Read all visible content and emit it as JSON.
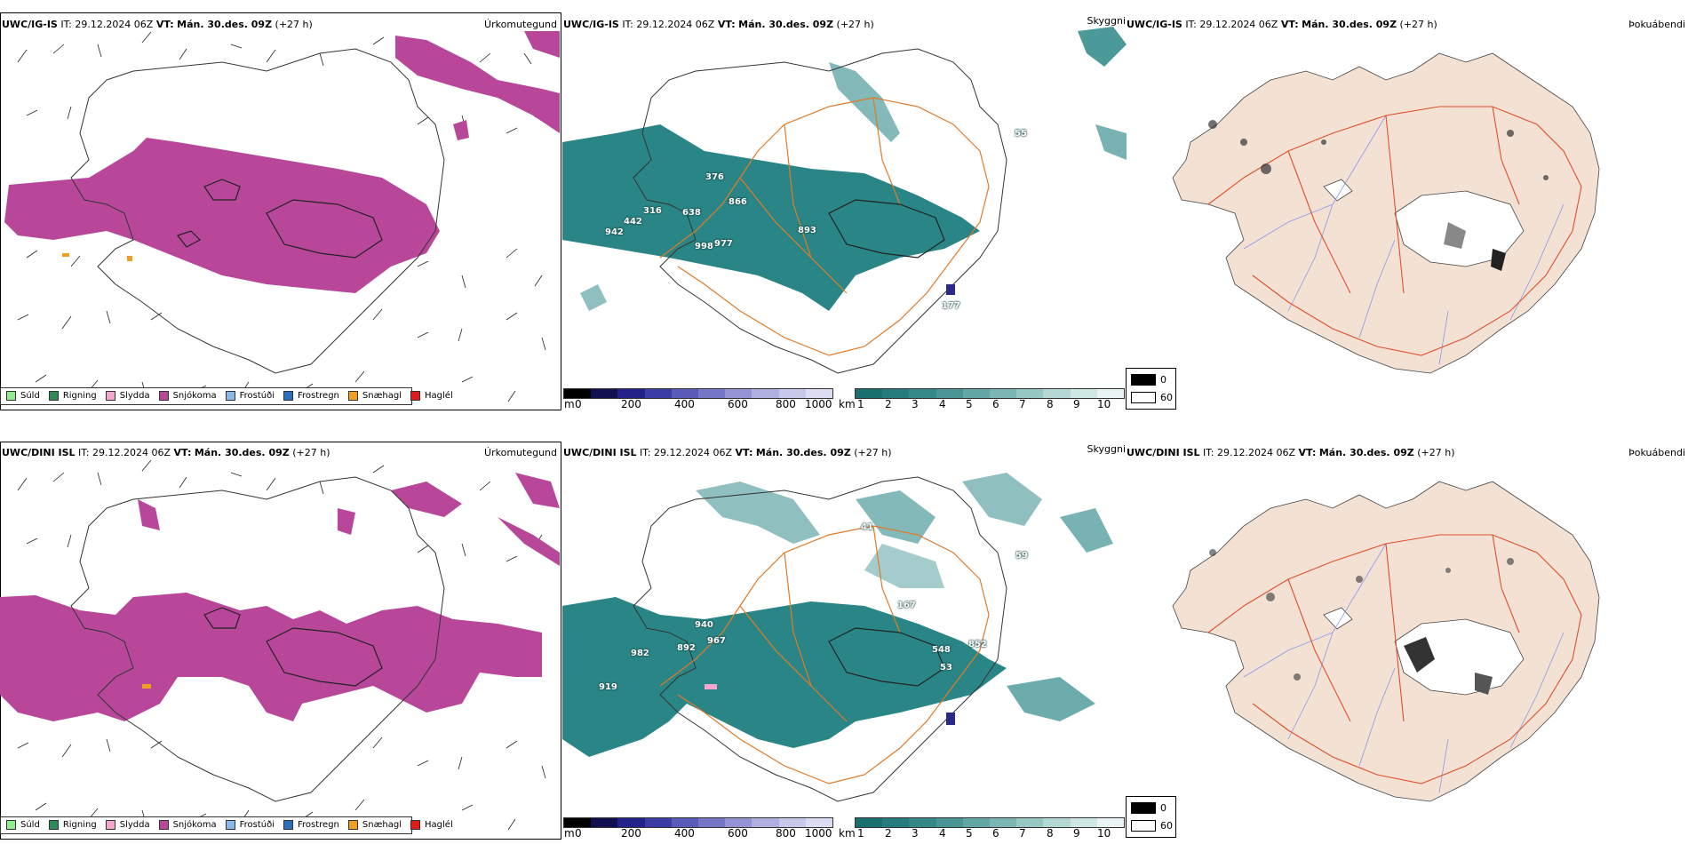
{
  "rows": [
    {
      "model": "UWC/IG-IS",
      "it_label": "IT:",
      "it_value": "29.12.2024 06Z",
      "vt_label": "VT:",
      "vt_value": "Mán. 30.des. 09Z",
      "lead": "(+27 h)",
      "vis_labels": [
        "376",
        "866",
        "316",
        "638",
        "442",
        "942",
        "893",
        "998",
        "977",
        "177",
        "55"
      ]
    },
    {
      "model": "UWC/DINI ISL",
      "it_label": "IT:",
      "it_value": "29.12.2024 06Z",
      "vt_label": "VT:",
      "vt_value": "Mán. 30.des. 09Z",
      "lead": "(+27 h)",
      "vis_labels": [
        "41",
        "167",
        "940",
        "967",
        "892",
        "982",
        "548",
        "852",
        "919",
        "53",
        "59"
      ]
    }
  ],
  "panel_titles": {
    "precip": "Úrkomutegund",
    "visibility": "Skyggni",
    "fog": "Þokuábendi"
  },
  "precip_legend": [
    {
      "label": "Súld",
      "color": "#90ee90"
    },
    {
      "label": "Rigning",
      "color": "#2e8b57"
    },
    {
      "label": "Slydda",
      "color": "#f4a6cf"
    },
    {
      "label": "Snjókoma",
      "color": "#b8479a"
    },
    {
      "label": "Frostúði",
      "color": "#87b8e8"
    },
    {
      "label": "Frostregn",
      "color": "#2a6ebd"
    },
    {
      "label": "Snæhagl",
      "color": "#f0a020"
    },
    {
      "label": "Haglél",
      "color": "#e31a1c"
    }
  ],
  "cloud_base_bar": {
    "unit": "m",
    "ticks": [
      "0",
      "200",
      "400",
      "600",
      "800",
      "1000"
    ],
    "colors": [
      "#000000",
      "#101050",
      "#222288",
      "#3c3ca6",
      "#5a5ab8",
      "#7676c6",
      "#9494d4",
      "#b0b0e0",
      "#c8c8ea",
      "#dcdcf2"
    ]
  },
  "visibility_bar": {
    "unit": "km",
    "ticks": [
      "1",
      "2",
      "3",
      "4",
      "5",
      "6",
      "7",
      "8",
      "9",
      "10"
    ],
    "colors": [
      "#1a6f6f",
      "#267c7c",
      "#358888",
      "#4a9696",
      "#62a6a6",
      "#7cb6b4",
      "#98c8c4",
      "#b4d8d4",
      "#d0e8e4",
      "#eaf4f2"
    ]
  },
  "fog_legend": [
    {
      "label": "0",
      "color": "#000000"
    },
    {
      "label": "60",
      "color": "#ffffff"
    }
  ],
  "colors": {
    "snow": "#b8479a",
    "visibility": "#1f7f7f",
    "roads": "#e07a28",
    "land": "#f3e1d4",
    "rivers": "#7f8ff0"
  }
}
